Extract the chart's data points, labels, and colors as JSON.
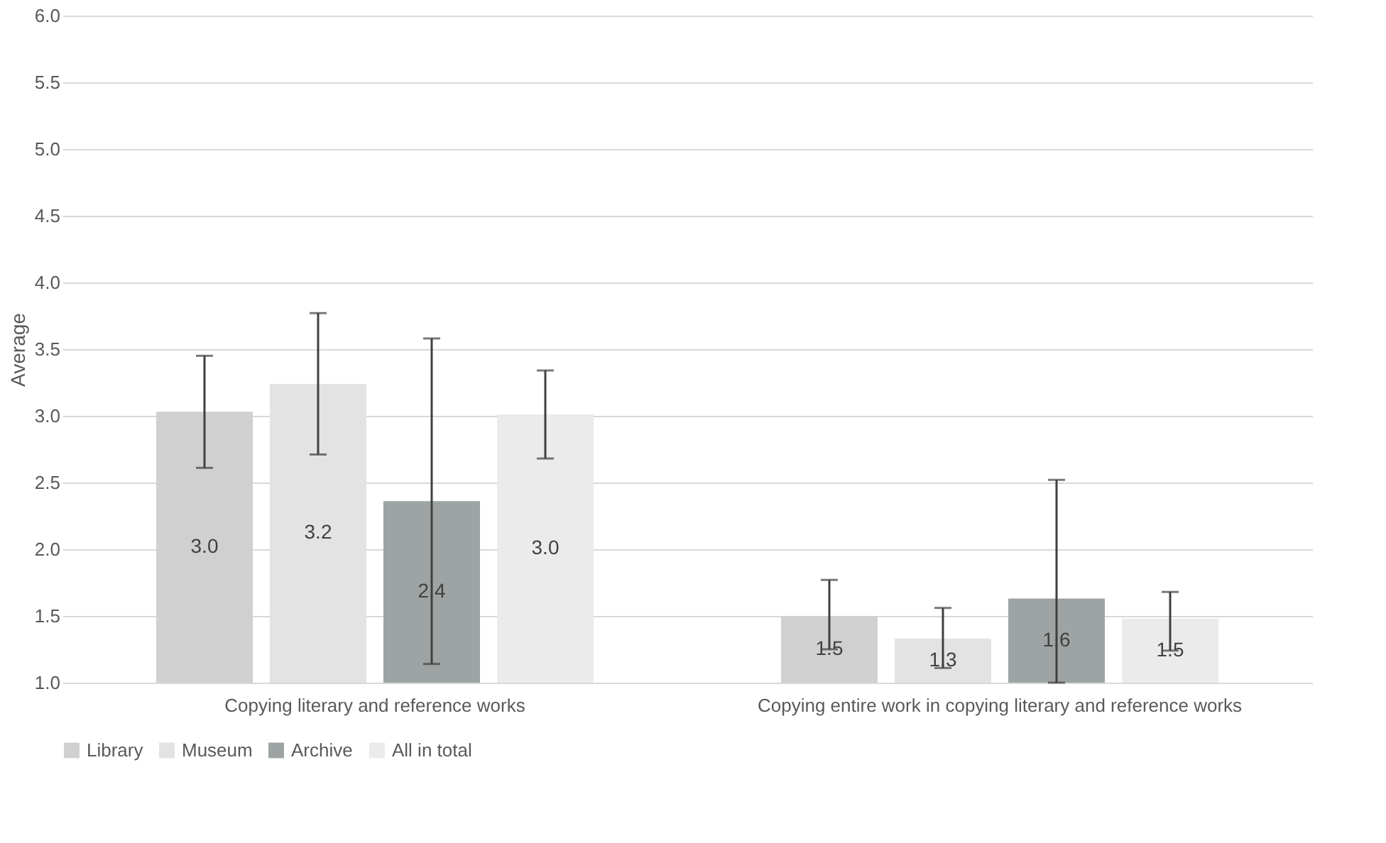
{
  "chart_data": {
    "type": "bar",
    "ylabel": "Average",
    "categories": [
      "Copying literary and reference works",
      "Copying entire work in copying literary and reference works"
    ],
    "series": [
      {
        "name": "Library",
        "color": "#d0d0d0",
        "values": [
          3.03,
          1.5
        ],
        "errors": [
          [
            2.61,
            3.45
          ],
          [
            1.25,
            1.77
          ]
        ],
        "value_labels": [
          "3.0",
          "1.5"
        ]
      },
      {
        "name": "Museum",
        "color": "#e3e3e3",
        "values": [
          3.24,
          1.33
        ],
        "errors": [
          [
            2.71,
            3.77
          ],
          [
            1.11,
            1.56
          ]
        ],
        "value_labels": [
          "3.2",
          "1.3"
        ]
      },
      {
        "name": "Archive",
        "color": "#9ea3a3",
        "values": [
          2.36,
          1.63
        ],
        "errors": [
          [
            1.14,
            3.58
          ],
          [
            1.0,
            2.52
          ]
        ],
        "value_labels": [
          "2.4",
          "1.6"
        ]
      },
      {
        "name": "All in total",
        "color": "#ebebeb",
        "values": [
          3.01,
          1.48
        ],
        "errors": [
          [
            2.68,
            3.34
          ],
          [
            1.24,
            1.68
          ]
        ],
        "value_labels": [
          "3.0",
          "1.5"
        ]
      }
    ],
    "ylim": [
      1.0,
      6.0
    ],
    "yticks": [
      {
        "value": 1,
        "label": "1.0"
      },
      {
        "value": 1.5,
        "label": "1.5"
      },
      {
        "value": 2,
        "label": "2.0"
      },
      {
        "value": 2.5,
        "label": "2.5"
      },
      {
        "value": 3,
        "label": "3.0"
      },
      {
        "value": 3.5,
        "label": "3.5"
      },
      {
        "value": 4,
        "label": "4.0"
      },
      {
        "value": 4.5,
        "label": "4.5"
      },
      {
        "value": 5,
        "label": "5.0"
      },
      {
        "value": 5.5,
        "label": "5.5"
      },
      {
        "value": 6,
        "label": "6.0"
      }
    ],
    "grid": "y",
    "legend": "bottom"
  }
}
